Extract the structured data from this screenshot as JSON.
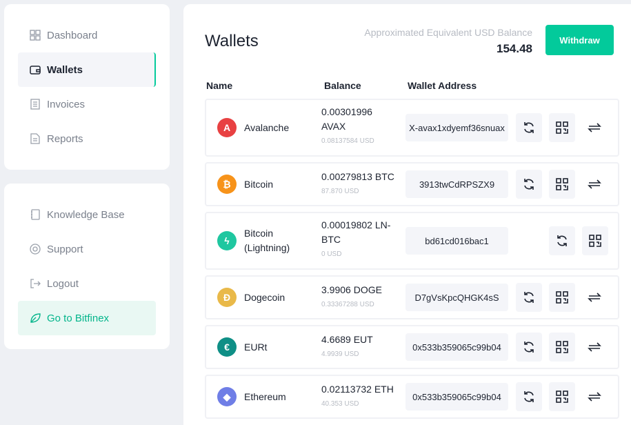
{
  "sidebar": {
    "top": [
      {
        "label": "Dashboard",
        "icon": "grid-icon"
      },
      {
        "label": "Wallets",
        "icon": "wallet-icon",
        "active": true
      },
      {
        "label": "Invoices",
        "icon": "invoice-icon"
      },
      {
        "label": "Reports",
        "icon": "report-icon"
      }
    ],
    "bottom": [
      {
        "label": "Knowledge Base",
        "icon": "book-icon"
      },
      {
        "label": "Support",
        "icon": "lifebuoy-icon"
      },
      {
        "label": "Logout",
        "icon": "logout-icon"
      },
      {
        "label": "Go to Bitfinex",
        "icon": "leaf-icon"
      }
    ]
  },
  "header": {
    "title": "Wallets",
    "balance_label": "Approximated Equivalent USD Balance",
    "balance_value": "154.48",
    "withdraw_label": "Withdraw"
  },
  "colors": {
    "accent": "#03ca9b"
  },
  "table": {
    "headers": [
      "Name",
      "Balance",
      "Wallet Address"
    ],
    "rows": [
      {
        "name": "Avalanche",
        "balance": "0.00301996 AVAX",
        "usd": "0.08137584 USD",
        "address": "X-avax1xdyemf36snuax",
        "color": "#e84142",
        "symbol": "A"
      },
      {
        "name": "Bitcoin",
        "balance": "0.00279813 BTC",
        "usd": "87.870 USD",
        "address": "3913twCdRPSZX9",
        "color": "#f7931a",
        "symbol": "₿"
      },
      {
        "name": "Bitcoin (Lightning)",
        "balance": "0.00019802 LN-BTC",
        "usd": "0 USD",
        "address": "bd61cd016bac1",
        "color": "#1fc7a0",
        "symbol": "ϟ"
      },
      {
        "name": "Dogecoin",
        "balance": "3.9906 DOGE",
        "usd": "0.33367288 USD",
        "address": "D7gVsKpcQHGK4sS",
        "color": "#e9b949",
        "symbol": "Ð"
      },
      {
        "name": "EURt",
        "balance": "4.6689 EUT",
        "usd": "4.9939 USD",
        "address": "0x533b359065c99b04",
        "color": "#0f8f86",
        "symbol": "€"
      },
      {
        "name": "Ethereum",
        "balance": "0.02113732 ETH",
        "usd": "40.353 USD",
        "address": "0x533b359065c99b04",
        "color": "#6f7ee6",
        "symbol": "◆"
      }
    ]
  }
}
